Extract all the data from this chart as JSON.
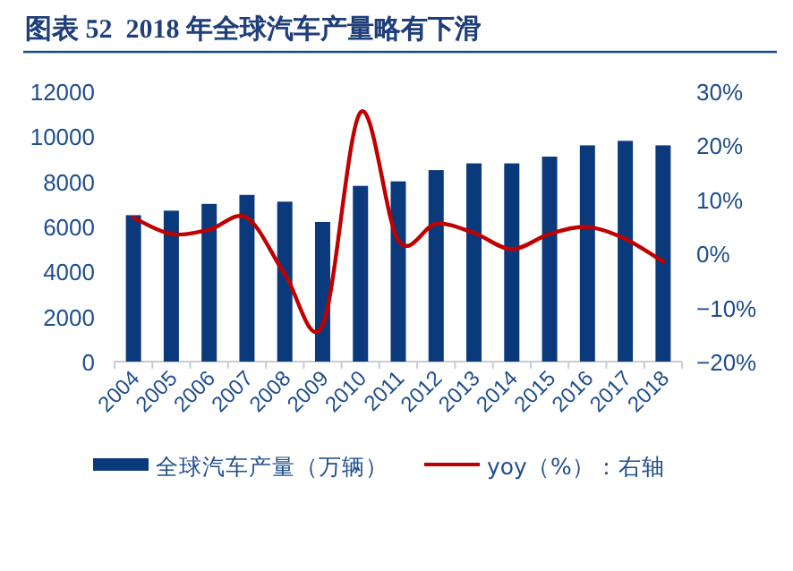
{
  "chart_data": {
    "type": "bar",
    "title": "图表 52  2018 年全球汽车产量略有下滑",
    "categories": [
      "2004",
      "2005",
      "2006",
      "2007",
      "2008",
      "2009",
      "2010",
      "2011",
      "2012",
      "2013",
      "2014",
      "2015",
      "2016",
      "2017",
      "2018"
    ],
    "series": [
      {
        "name": "全球汽车产量（万辆）",
        "color": "#0b3a7c",
        "values": [
          6500,
          6700,
          7000,
          7400,
          7100,
          6200,
          7800,
          8000,
          8500,
          8800,
          8800,
          9100,
          9600,
          9800,
          9600
        ]
      },
      {
        "name": "yoy（%）：右轴",
        "type": "line",
        "axis": "y2",
        "color": "#c00000",
        "values": [
          6.6,
          3.6,
          4.4,
          6.6,
          -3.8,
          -13.3,
          26.1,
          2.4,
          5.5,
          3.8,
          0.8,
          3.6,
          4.9,
          2.7,
          -1.5
        ]
      }
    ],
    "ylim": [
      0,
      12000
    ],
    "yticks": [
      0,
      2000,
      4000,
      6000,
      8000,
      10000,
      12000
    ],
    "y2lim": [
      -20,
      30
    ],
    "y2ticks": [
      {
        "value": -20,
        "label": "−20%"
      },
      {
        "value": -10,
        "label": "−10%"
      },
      {
        "value": 0,
        "label": "0%"
      },
      {
        "value": 10,
        "label": "10%"
      },
      {
        "value": 20,
        "label": "20%"
      },
      {
        "value": 30,
        "label": "30%"
      }
    ],
    "legend": "bottom",
    "grid": false,
    "marker": "none"
  }
}
